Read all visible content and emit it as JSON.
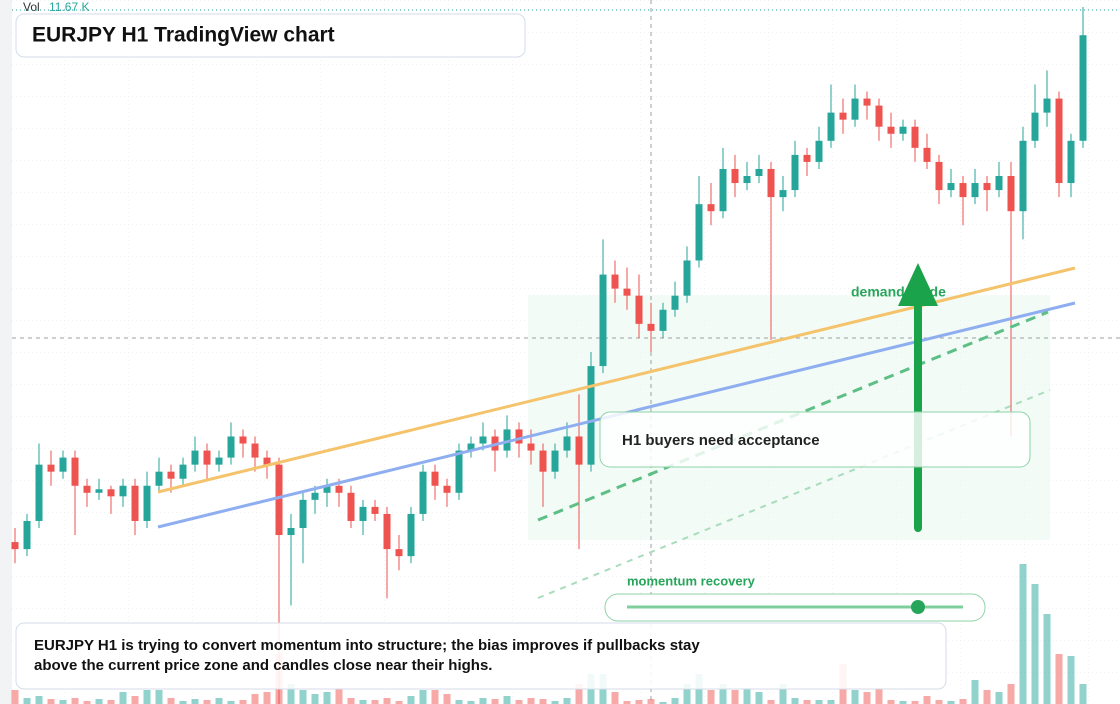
{
  "chart_data": {
    "type": "candlestick",
    "title": "EURJPY H1 TradingView chart",
    "volume_label": "Vol",
    "volume_reading": "11.67 K",
    "zone_note": "H1 buyers need acceptance",
    "guide_label": "demand guide",
    "slider_label": "momentum recovery",
    "caption": "EURJPY H1 is trying to convert momentum into structure; the bias improves if pullbacks stay above the current price zone and candles close near their highs.",
    "up_color": "#26a69a",
    "down_color": "#ef5350",
    "ylim": [
      0,
      100
    ],
    "vlim": [
      0,
      140
    ],
    "candles": [
      [
        23,
        25,
        20,
        22
      ],
      [
        22,
        27,
        21,
        26
      ],
      [
        26,
        37,
        25,
        34
      ],
      [
        34,
        36,
        31,
        33
      ],
      [
        33,
        36,
        32,
        35
      ],
      [
        35,
        36,
        24,
        31
      ],
      [
        31,
        32,
        28,
        30
      ],
      [
        30,
        32,
        29,
        30.5
      ],
      [
        30.5,
        31,
        27,
        29.5
      ],
      [
        29.5,
        32,
        28,
        31
      ],
      [
        31,
        32,
        24,
        26
      ],
      [
        26,
        33,
        25,
        31
      ],
      [
        31,
        35,
        30,
        33
      ],
      [
        33,
        34,
        30,
        32
      ],
      [
        32,
        35,
        31,
        34
      ],
      [
        34,
        38,
        33,
        36
      ],
      [
        36,
        37,
        32,
        34
      ],
      [
        34,
        36,
        33,
        35
      ],
      [
        35,
        40,
        34,
        38
      ],
      [
        38,
        39,
        35,
        37
      ],
      [
        37,
        38,
        33,
        35
      ],
      [
        35,
        36,
        32,
        34
      ],
      [
        34,
        35,
        0,
        24
      ],
      [
        24,
        27,
        14,
        25
      ],
      [
        25,
        30,
        20,
        29
      ],
      [
        29,
        31,
        27,
        30
      ],
      [
        30,
        32,
        28,
        31
      ],
      [
        31,
        32,
        28,
        30
      ],
      [
        30,
        31,
        25,
        26
      ],
      [
        26,
        29,
        24,
        28
      ],
      [
        28,
        29,
        26,
        27
      ],
      [
        27,
        28,
        15,
        22
      ],
      [
        22,
        24,
        19,
        21
      ],
      [
        21,
        28,
        20,
        27
      ],
      [
        27,
        34,
        26,
        33
      ],
      [
        33,
        34,
        29,
        31
      ],
      [
        31,
        32,
        28,
        30
      ],
      [
        30,
        37,
        29,
        36
      ],
      [
        36,
        38,
        35,
        37
      ],
      [
        37,
        40,
        36,
        38
      ],
      [
        38,
        39,
        33,
        36
      ],
      [
        36,
        41,
        35,
        39
      ],
      [
        39,
        40,
        35,
        37
      ],
      [
        37,
        39,
        34,
        36
      ],
      [
        36,
        37,
        28,
        33
      ],
      [
        33,
        37,
        32,
        36
      ],
      [
        36,
        40,
        35,
        38
      ],
      [
        38,
        44,
        22,
        34
      ],
      [
        34,
        50,
        33,
        48
      ],
      [
        48,
        66,
        47,
        61
      ],
      [
        61,
        63,
        57,
        59
      ],
      [
        59,
        62,
        56,
        58
      ],
      [
        58,
        61,
        52,
        54
      ],
      [
        54,
        57,
        50,
        53
      ],
      [
        53,
        57,
        52,
        56
      ],
      [
        56,
        60,
        55,
        58
      ],
      [
        58,
        65,
        57,
        63
      ],
      [
        63,
        75,
        62,
        71
      ],
      [
        71,
        74,
        68,
        70
      ],
      [
        70,
        79,
        69,
        76
      ],
      [
        76,
        78,
        72,
        74
      ],
      [
        74,
        77,
        73,
        75
      ],
      [
        75,
        78,
        74,
        76
      ],
      [
        76,
        77,
        51.7,
        72
      ],
      [
        72,
        75,
        70,
        73
      ],
      [
        73,
        80,
        72,
        78
      ],
      [
        78,
        79,
        75,
        77
      ],
      [
        77,
        82,
        76,
        80
      ],
      [
        80,
        88,
        79,
        84
      ],
      [
        84,
        86,
        81,
        83
      ],
      [
        83,
        88,
        82,
        86
      ],
      [
        86,
        87,
        83,
        85
      ],
      [
        85,
        86,
        80,
        82
      ],
      [
        82,
        84,
        79,
        81
      ],
      [
        81,
        83,
        80,
        82
      ],
      [
        82,
        83,
        77,
        79
      ],
      [
        79,
        81,
        76,
        77
      ],
      [
        77,
        78,
        71,
        73
      ],
      [
        73,
        76,
        72,
        74
      ],
      [
        74,
        75,
        68,
        72
      ],
      [
        72,
        76,
        71,
        74
      ],
      [
        74,
        75,
        70,
        73
      ],
      [
        73,
        77,
        72,
        75
      ],
      [
        75,
        77,
        38,
        70
      ],
      [
        70,
        82,
        66,
        80
      ],
      [
        80,
        88,
        79,
        84
      ],
      [
        84,
        90,
        82,
        86
      ],
      [
        86,
        87,
        72,
        74
      ],
      [
        74,
        81,
        72,
        80
      ],
      [
        80,
        99,
        79,
        95
      ]
    ],
    "volumes": [
      14,
      6,
      8,
      5,
      4,
      6,
      3,
      5,
      4,
      12,
      8,
      14,
      14,
      6,
      3,
      5,
      4,
      6,
      3,
      4,
      10,
      12,
      50,
      20,
      14,
      10,
      12,
      16,
      6,
      4,
      4,
      6,
      3,
      8,
      14,
      14,
      10,
      4,
      3,
      6,
      5,
      8,
      4,
      6,
      5,
      3,
      6,
      20,
      30,
      30,
      12,
      3,
      4,
      5,
      2,
      6,
      20,
      30,
      14,
      20,
      14,
      16,
      12,
      4,
      20,
      6,
      4,
      4,
      4,
      40,
      14,
      12,
      16,
      4,
      3,
      3,
      8,
      4,
      3,
      5,
      24,
      14,
      12,
      20,
      140,
      120,
      90,
      50,
      48,
      20
    ]
  }
}
